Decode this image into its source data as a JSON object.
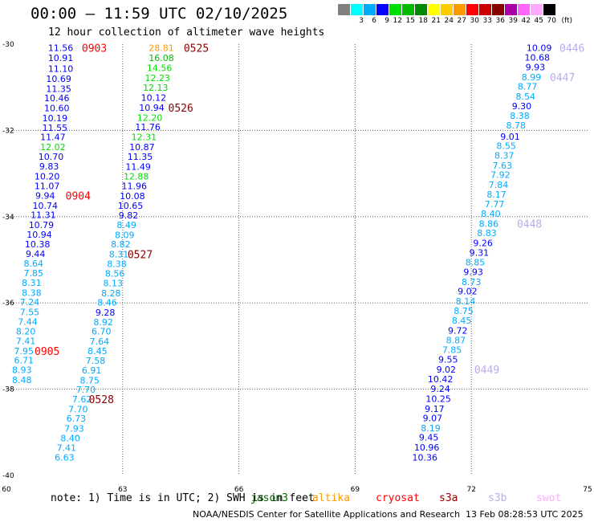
{
  "header": {
    "title": "00:00 – 11:59 UTC 02/10/2025",
    "subtitle": "12 hour collection of altimeter wave heights"
  },
  "legend": {
    "unit": "(ft)",
    "colors": [
      "#808080",
      "#00ffff",
      "#00aaff",
      "#0000ff",
      "#00dd00",
      "#00bb00",
      "#008800",
      "#ffff00",
      "#ffcc00",
      "#ff9900",
      "#ff0000",
      "#cc0000",
      "#880000",
      "#aa00aa",
      "#ff66ff",
      "#ffaaff",
      "#000000"
    ],
    "labels": [
      "",
      "3",
      "6",
      "9",
      "12",
      "15",
      "18",
      "21",
      "24",
      "27",
      "30",
      "33",
      "36",
      "39",
      "42",
      "45",
      "70"
    ]
  },
  "footer": {
    "note": "note: 1) Time is in UTC; 2) SWH is in feet",
    "satellites": [
      {
        "name": "jason3",
        "color": "#006600"
      },
      {
        "name": "altika",
        "color": "#ff9900"
      },
      {
        "name": "cryosat",
        "color": "#ff0000"
      },
      {
        "name": "s3a",
        "color": "#880000"
      },
      {
        "name": "s3b",
        "color": "#bbaaee"
      },
      {
        "name": "swot",
        "color": "#ffaaff"
      }
    ],
    "credit": "NOAA/NESDIS Center for Satellite Applications and Research",
    "timestamp": "13 Feb 08:28:53 UTC 2025"
  },
  "chart_data": {
    "type": "scatter",
    "xlim": [
      60,
      75
    ],
    "ylim": [
      -40,
      -30
    ],
    "x_ticks": [
      "60",
      "63",
      "66",
      "69",
      "72",
      "75"
    ],
    "y_ticks": [
      "-30",
      "-32",
      "-34",
      "-36",
      "-38",
      "-40"
    ],
    "grid": true,
    "color_scale": {
      "thresholds": [
        3,
        6,
        9,
        12,
        15,
        18,
        21,
        24,
        27,
        30,
        33,
        36,
        39,
        42,
        45,
        70
      ],
      "colors": [
        "#808080",
        "#00ffff",
        "#00aaff",
        "#0000ff",
        "#00dd00",
        "#00bb00",
        "#008800",
        "#ffff00",
        "#ffcc00",
        "#ff9900",
        "#ff0000",
        "#cc0000",
        "#880000",
        "#aa00aa",
        "#ff66ff",
        "#ffaaff",
        "#000000"
      ]
    },
    "tracks": [
      {
        "points": [
          {
            "x": 61.4,
            "y": -30.08,
            "v": "11.56"
          },
          {
            "x": 61.4,
            "y": -30.32,
            "v": "10.91"
          },
          {
            "x": 61.4,
            "y": -30.57,
            "v": "11.10"
          },
          {
            "x": 61.35,
            "y": -30.8,
            "v": "10.69"
          },
          {
            "x": 61.35,
            "y": -31.03,
            "v": "11.35"
          },
          {
            "x": 61.3,
            "y": -31.25,
            "v": "10.46"
          },
          {
            "x": 61.3,
            "y": -31.48,
            "v": "10.60"
          },
          {
            "x": 61.25,
            "y": -31.71,
            "v": "10.19"
          },
          {
            "x": 61.25,
            "y": -31.94,
            "v": "11.55"
          },
          {
            "x": 61.2,
            "y": -32.15,
            "v": "11.47"
          },
          {
            "x": 61.2,
            "y": -32.38,
            "v": "12.02"
          },
          {
            "x": 61.15,
            "y": -32.61,
            "v": "10.70"
          },
          {
            "x": 61.1,
            "y": -32.83,
            "v": "9.83"
          },
          {
            "x": 61.05,
            "y": -33.06,
            "v": "10.20"
          },
          {
            "x": 61.05,
            "y": -33.29,
            "v": "11.07"
          },
          {
            "x": 61.0,
            "y": -33.51,
            "v": "9.94"
          },
          {
            "x": 61.0,
            "y": -33.74,
            "v": "10.74"
          },
          {
            "x": 60.95,
            "y": -33.96,
            "v": "11.31"
          },
          {
            "x": 60.9,
            "y": -34.19,
            "v": "10.79"
          },
          {
            "x": 60.85,
            "y": -34.41,
            "v": "10.94"
          },
          {
            "x": 60.8,
            "y": -34.64,
            "v": "10.38"
          },
          {
            "x": 60.75,
            "y": -34.86,
            "v": "9.44"
          },
          {
            "x": 60.7,
            "y": -35.08,
            "v": "8.64"
          },
          {
            "x": 60.7,
            "y": -35.31,
            "v": "7.85"
          },
          {
            "x": 60.65,
            "y": -35.53,
            "v": "8.31"
          },
          {
            "x": 60.65,
            "y": -35.76,
            "v": "8.38"
          },
          {
            "x": 60.6,
            "y": -35.98,
            "v": "7.24"
          },
          {
            "x": 60.6,
            "y": -36.21,
            "v": "7.55"
          },
          {
            "x": 60.55,
            "y": -36.43,
            "v": "7.44"
          },
          {
            "x": 60.5,
            "y": -36.66,
            "v": "8.20"
          },
          {
            "x": 60.5,
            "y": -36.88,
            "v": "7.41"
          },
          {
            "x": 60.45,
            "y": -37.11,
            "v": "7.95"
          },
          {
            "x": 60.45,
            "y": -37.33,
            "v": "6.71"
          },
          {
            "x": 60.4,
            "y": -37.55,
            "v": "8.93"
          },
          {
            "x": 60.4,
            "y": -37.78,
            "v": "8.48"
          }
        ],
        "label": {
          "text": "0903",
          "x": 62.27,
          "y": -30.08,
          "color": "#ff0000"
        }
      },
      {
        "points": [],
        "label": {
          "text": "0904",
          "x": 61.85,
          "y": -33.51,
          "color": "#ff0000"
        }
      },
      {
        "points": [],
        "label": {
          "text": "0905",
          "x": 61.05,
          "y": -37.11,
          "color": "#ff0000"
        }
      },
      {
        "points": [
          {
            "x": 64.0,
            "y": -30.08,
            "v": "28.81"
          },
          {
            "x": 64.0,
            "y": -30.32,
            "v": "16.08"
          },
          {
            "x": 63.95,
            "y": -30.55,
            "v": "14.56"
          },
          {
            "x": 63.9,
            "y": -30.78,
            "v": "12.23"
          },
          {
            "x": 63.85,
            "y": -31.01,
            "v": "12.13"
          },
          {
            "x": 63.8,
            "y": -31.24,
            "v": "10.12"
          },
          {
            "x": 63.75,
            "y": -31.47,
            "v": "10.94"
          },
          {
            "x": 63.7,
            "y": -31.7,
            "v": "12.20"
          },
          {
            "x": 63.65,
            "y": -31.92,
            "v": "11.76"
          },
          {
            "x": 63.55,
            "y": -32.15,
            "v": "12.31"
          },
          {
            "x": 63.5,
            "y": -32.38,
            "v": "10.87"
          },
          {
            "x": 63.45,
            "y": -32.61,
            "v": "11.35"
          },
          {
            "x": 63.4,
            "y": -32.84,
            "v": "11.49"
          },
          {
            "x": 63.35,
            "y": -33.06,
            "v": "12.88"
          },
          {
            "x": 63.3,
            "y": -33.29,
            "v": "11.96"
          },
          {
            "x": 63.25,
            "y": -33.52,
            "v": "10.08"
          },
          {
            "x": 63.2,
            "y": -33.74,
            "v": "10.65"
          },
          {
            "x": 63.15,
            "y": -33.97,
            "v": "9.82"
          },
          {
            "x": 63.1,
            "y": -34.19,
            "v": "8.49"
          },
          {
            "x": 63.05,
            "y": -34.42,
            "v": "8.09"
          },
          {
            "x": 62.95,
            "y": -34.64,
            "v": "8.82"
          },
          {
            "x": 62.9,
            "y": -34.87,
            "v": "8.31"
          },
          {
            "x": 62.85,
            "y": -35.09,
            "v": "8.38"
          },
          {
            "x": 62.8,
            "y": -35.32,
            "v": "8.56"
          },
          {
            "x": 62.75,
            "y": -35.54,
            "v": "8.13"
          },
          {
            "x": 62.7,
            "y": -35.77,
            "v": "8.28"
          },
          {
            "x": 62.6,
            "y": -35.99,
            "v": "8.46"
          },
          {
            "x": 62.55,
            "y": -36.22,
            "v": "9.28"
          },
          {
            "x": 62.5,
            "y": -36.44,
            "v": "8.92"
          },
          {
            "x": 62.45,
            "y": -36.66,
            "v": "6.70"
          },
          {
            "x": 62.4,
            "y": -36.89,
            "v": "7.64"
          },
          {
            "x": 62.35,
            "y": -37.11,
            "v": "8.45"
          },
          {
            "x": 62.3,
            "y": -37.34,
            "v": "7.58"
          },
          {
            "x": 62.2,
            "y": -37.56,
            "v": "6.91"
          },
          {
            "x": 62.15,
            "y": -37.79,
            "v": "8.75"
          },
          {
            "x": 62.05,
            "y": -38.01,
            "v": "7.70"
          },
          {
            "x": 61.95,
            "y": -38.23,
            "v": "7.62"
          },
          {
            "x": 61.85,
            "y": -38.46,
            "v": "7.70"
          },
          {
            "x": 61.8,
            "y": -38.68,
            "v": "6.73"
          },
          {
            "x": 61.75,
            "y": -38.91,
            "v": "7.93"
          },
          {
            "x": 61.65,
            "y": -39.13,
            "v": "8.40"
          },
          {
            "x": 61.55,
            "y": -39.36,
            "v": "7.41"
          },
          {
            "x": 61.5,
            "y": -39.58,
            "v": "6.63"
          }
        ],
        "label": {
          "text": "0525",
          "x": 64.9,
          "y": -30.08,
          "color": "#880000"
        }
      },
      {
        "points": [],
        "label": {
          "text": "0526",
          "x": 64.5,
          "y": -31.47,
          "color": "#880000"
        }
      },
      {
        "points": [],
        "label": {
          "text": "0527",
          "x": 63.45,
          "y": -34.87,
          "color": "#880000"
        }
      },
      {
        "points": [],
        "label": {
          "text": "0528",
          "x": 62.45,
          "y": -38.23,
          "color": "#880000"
        }
      },
      {
        "points": [
          {
            "x": 73.75,
            "y": -30.08,
            "v": "10.09"
          },
          {
            "x": 73.7,
            "y": -30.31,
            "v": "10.68"
          },
          {
            "x": 73.65,
            "y": -30.53,
            "v": "9.93"
          },
          {
            "x": 73.55,
            "y": -30.76,
            "v": "8.99"
          },
          {
            "x": 73.45,
            "y": -30.98,
            "v": "8.77"
          },
          {
            "x": 73.4,
            "y": -31.21,
            "v": "8.54"
          },
          {
            "x": 73.3,
            "y": -31.43,
            "v": "9.30"
          },
          {
            "x": 73.25,
            "y": -31.66,
            "v": "8.38"
          },
          {
            "x": 73.15,
            "y": -31.88,
            "v": "8.78"
          },
          {
            "x": 73.0,
            "y": -32.14,
            "v": "9.01"
          },
          {
            "x": 72.9,
            "y": -32.36,
            "v": "8.55"
          },
          {
            "x": 72.85,
            "y": -32.58,
            "v": "8.37"
          },
          {
            "x": 72.8,
            "y": -32.81,
            "v": "7.63"
          },
          {
            "x": 72.75,
            "y": -33.03,
            "v": "7.92"
          },
          {
            "x": 72.7,
            "y": -33.26,
            "v": "7.84"
          },
          {
            "x": 72.65,
            "y": -33.48,
            "v": "8.17"
          },
          {
            "x": 72.6,
            "y": -33.71,
            "v": "7.77"
          },
          {
            "x": 72.5,
            "y": -33.93,
            "v": "8.40"
          },
          {
            "x": 72.45,
            "y": -34.16,
            "v": "8.86"
          },
          {
            "x": 72.4,
            "y": -34.38,
            "v": "8.83"
          },
          {
            "x": 72.3,
            "y": -34.61,
            "v": "9.26"
          },
          {
            "x": 72.2,
            "y": -34.83,
            "v": "9.31"
          },
          {
            "x": 72.1,
            "y": -35.06,
            "v": "8.85"
          },
          {
            "x": 72.05,
            "y": -35.28,
            "v": "9.93"
          },
          {
            "x": 72.0,
            "y": -35.51,
            "v": "8.73"
          },
          {
            "x": 71.9,
            "y": -35.73,
            "v": "9.02"
          },
          {
            "x": 71.85,
            "y": -35.96,
            "v": "8.14"
          },
          {
            "x": 71.8,
            "y": -36.18,
            "v": "8.75"
          },
          {
            "x": 71.75,
            "y": -36.41,
            "v": "8.45"
          },
          {
            "x": 71.65,
            "y": -36.64,
            "v": "9.72"
          },
          {
            "x": 71.6,
            "y": -36.86,
            "v": "8.87"
          },
          {
            "x": 71.5,
            "y": -37.09,
            "v": "7.85"
          },
          {
            "x": 71.4,
            "y": -37.31,
            "v": "9.55"
          },
          {
            "x": 71.35,
            "y": -37.54,
            "v": "9.02"
          },
          {
            "x": 71.2,
            "y": -37.77,
            "v": "10.42"
          },
          {
            "x": 71.2,
            "y": -37.99,
            "v": "9.24"
          },
          {
            "x": 71.15,
            "y": -38.22,
            "v": "10.25"
          },
          {
            "x": 71.05,
            "y": -38.45,
            "v": "9.17"
          },
          {
            "x": 71.0,
            "y": -38.67,
            "v": "9.07"
          },
          {
            "x": 70.95,
            "y": -38.9,
            "v": "8.19"
          },
          {
            "x": 70.9,
            "y": -39.12,
            "v": "9.45"
          },
          {
            "x": 70.85,
            "y": -39.35,
            "v": "10.96"
          },
          {
            "x": 70.8,
            "y": -39.58,
            "v": "10.36"
          }
        ],
        "label": {
          "text": "0446",
          "x": 74.6,
          "y": -30.08,
          "color": "#bbaaee"
        }
      },
      {
        "points": [],
        "label": {
          "text": "0447",
          "x": 74.35,
          "y": -30.76,
          "color": "#bbaaee"
        }
      },
      {
        "points": [],
        "label": {
          "text": "0448",
          "x": 73.5,
          "y": -34.16,
          "color": "#bbaaee"
        }
      },
      {
        "points": [],
        "label": {
          "text": "0449",
          "x": 72.4,
          "y": -37.54,
          "color": "#bbaaee"
        }
      }
    ]
  }
}
